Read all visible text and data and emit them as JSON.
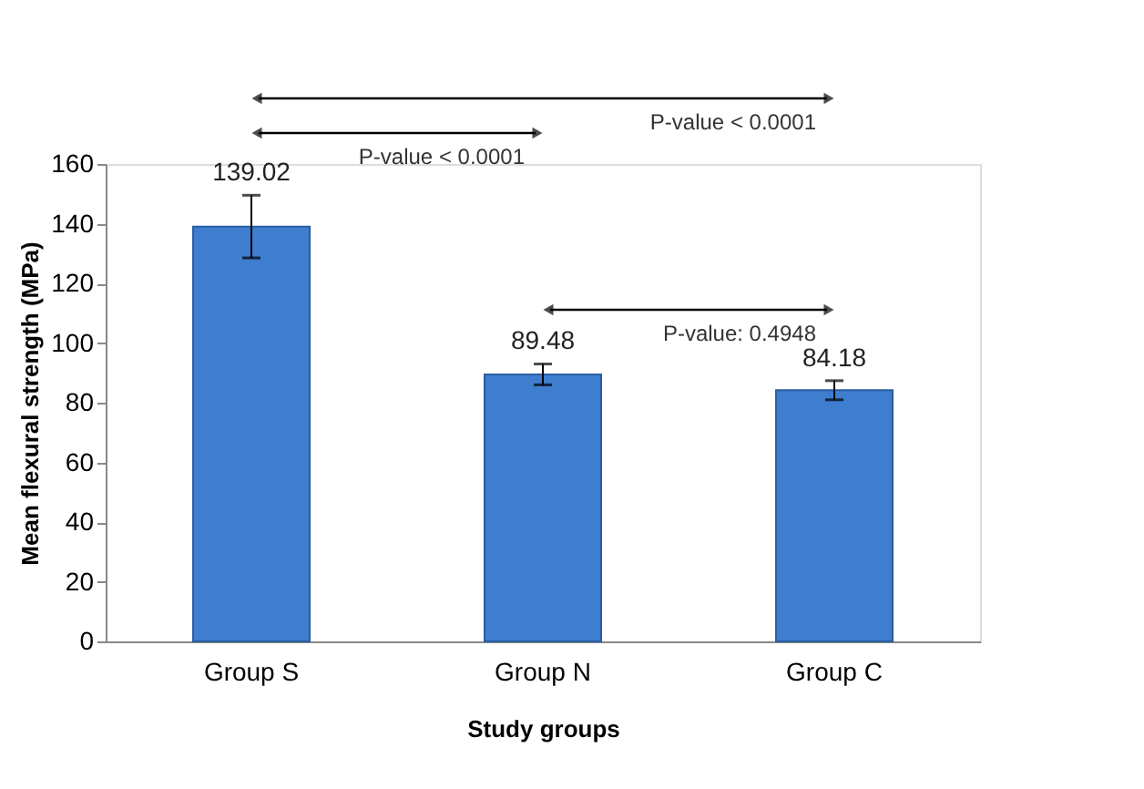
{
  "chart_data": {
    "type": "bar",
    "xlabel": "Study groups",
    "ylabel": "Mean flexural strength (MPa)",
    "categories": [
      "Group S",
      "Group N",
      "Group C"
    ],
    "values": [
      139.02,
      89.48,
      84.18
    ],
    "errors": [
      10.5,
      3.5,
      3.2
    ],
    "color": "#3f7dcf",
    "data_labels": true,
    "grid": false,
    "ylim": [
      0,
      160
    ],
    "yticks": [
      0,
      20,
      40,
      60,
      80,
      100,
      120,
      140,
      160
    ],
    "annotations": [
      "P-value < 0.0001",
      "P-value < 0.0001",
      "P-value: 0.4948"
    ]
  }
}
